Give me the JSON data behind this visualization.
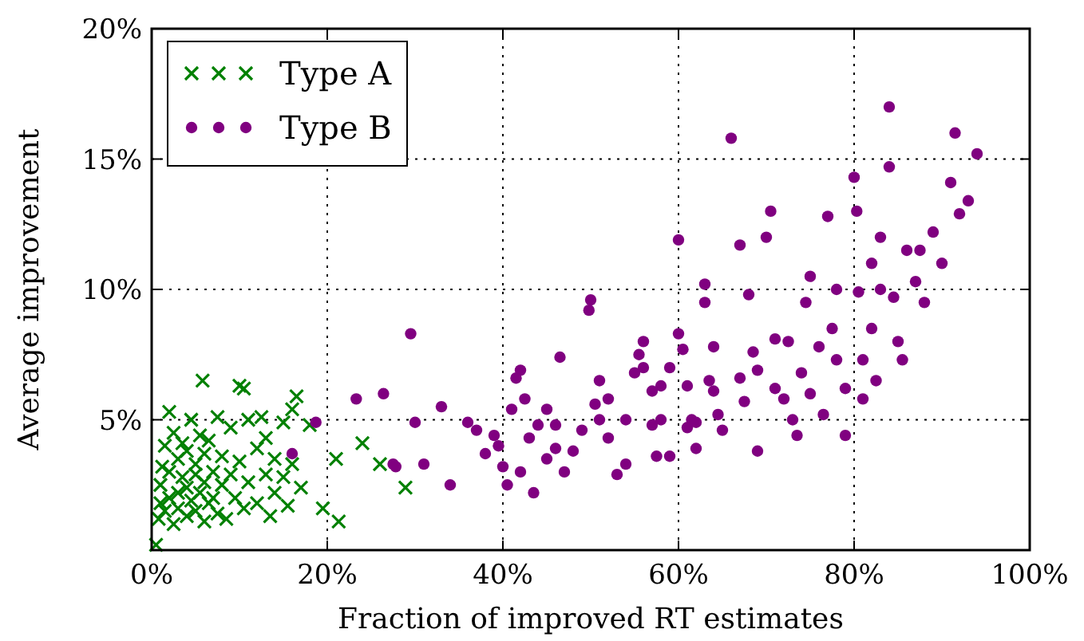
{
  "chart_data": {
    "type": "scatter",
    "xlabel": "Fraction of improved RT estimates",
    "ylabel": "Average improvement",
    "xlim": [
      0,
      100
    ],
    "ylim": [
      0,
      20
    ],
    "xticks": [
      {
        "value": 0,
        "label": "0%"
      },
      {
        "value": 20,
        "label": "20%"
      },
      {
        "value": 40,
        "label": "40%"
      },
      {
        "value": 60,
        "label": "60%"
      },
      {
        "value": 80,
        "label": "80%"
      },
      {
        "value": 100,
        "label": "100%"
      }
    ],
    "yticks": [
      {
        "value": 5,
        "label": "5%"
      },
      {
        "value": 10,
        "label": "10%"
      },
      {
        "value": 15,
        "label": "15%"
      },
      {
        "value": 20,
        "label": "20%"
      }
    ],
    "grid": true,
    "legend": "top left",
    "series": [
      {
        "name": "Type A",
        "color": "#008000",
        "marker": "cross",
        "x": [
          0.5,
          0.8,
          1,
          1,
          1.2,
          1.5,
          1.5,
          2,
          2,
          2,
          2.5,
          2.5,
          3,
          3,
          3,
          3.5,
          3.5,
          4,
          4,
          4,
          4.5,
          4.5,
          5,
          5,
          5,
          5.5,
          5.5,
          5.8,
          6,
          6,
          6,
          6.5,
          6.5,
          7,
          7,
          7.5,
          7.5,
          8,
          8,
          8.5,
          9,
          9,
          9.5,
          10,
          10,
          10.5,
          10.5,
          11,
          11,
          12,
          12,
          12.5,
          13,
          13,
          13.5,
          14,
          14,
          15,
          15,
          15.5,
          16,
          16,
          16.5,
          17,
          21,
          24,
          26,
          28.9,
          19.5,
          21.3,
          18
        ],
        "values": [
          0.2,
          1.2,
          1.8,
          2.5,
          3.2,
          4.0,
          1.5,
          2.0,
          3.0,
          5.3,
          4.5,
          1.0,
          2.2,
          3.5,
          1.6,
          2.8,
          4.1,
          1.3,
          2.4,
          3.8,
          5.0,
          1.9,
          2.9,
          1.5,
          3.3,
          4.4,
          2.2,
          6.5,
          1.1,
          3.7,
          2.6,
          4.2,
          1.8,
          3.0,
          2.0,
          5.1,
          1.4,
          3.6,
          2.5,
          1.2,
          4.7,
          2.9,
          2.0,
          6.3,
          3.4,
          1.6,
          6.2,
          5.0,
          2.6,
          3.9,
          1.8,
          5.1,
          2.9,
          4.3,
          1.3,
          3.5,
          2.2,
          4.9,
          2.8,
          1.7,
          5.4,
          3.3,
          5.9,
          2.4,
          3.5,
          4.1,
          3.3,
          2.4,
          1.6,
          1.1,
          4.8
        ]
      },
      {
        "name": "Type B",
        "color": "#800080",
        "marker": "circle",
        "x": [
          18.7,
          16,
          23.3,
          26.4,
          27.5,
          27.8,
          30,
          29.5,
          33,
          31,
          34,
          36,
          37,
          39,
          38,
          39.5,
          40,
          40.5,
          41,
          41.5,
          42,
          42.5,
          43,
          42,
          43.5,
          44,
          45,
          45,
          46,
          46,
          46.5,
          47,
          48,
          49,
          49.8,
          50,
          50.5,
          51,
          51,
          52,
          52,
          53,
          54,
          54,
          55,
          55.5,
          56,
          56,
          57,
          57,
          57.5,
          58,
          58,
          59,
          59,
          60,
          60,
          60.5,
          61,
          61,
          61.5,
          62,
          62,
          63,
          63,
          63.5,
          64,
          64,
          64.5,
          65,
          66,
          67,
          67,
          67.5,
          68,
          68.5,
          69,
          69,
          70,
          70.5,
          71,
          71,
          72,
          72.5,
          73,
          73.5,
          74,
          74.5,
          75,
          75,
          76,
          76.5,
          77,
          77.5,
          78,
          78,
          79,
          79,
          80,
          80.3,
          80.5,
          81,
          81,
          82,
          82,
          82.5,
          83,
          83,
          84,
          84,
          84.5,
          85,
          85.5,
          86,
          87,
          88,
          89,
          91,
          91.5,
          92,
          93,
          94,
          90,
          87.5
        ],
        "values": [
          4.9,
          3.7,
          5.8,
          6.0,
          3.3,
          3.2,
          4.9,
          8.3,
          5.5,
          3.3,
          2.5,
          4.9,
          4.6,
          4.4,
          3.7,
          4.0,
          3.2,
          2.5,
          5.4,
          6.6,
          6.9,
          5.8,
          4.3,
          3.0,
          2.2,
          4.8,
          5.4,
          3.5,
          4.8,
          3.9,
          7.4,
          3.0,
          3.8,
          4.6,
          9.2,
          9.6,
          5.6,
          6.5,
          5.0,
          5.8,
          4.3,
          2.9,
          3.3,
          5.0,
          6.8,
          7.5,
          8.0,
          7.0,
          6.1,
          4.8,
          3.6,
          6.3,
          5.0,
          7.0,
          3.6,
          11.9,
          8.3,
          7.7,
          6.3,
          4.7,
          5.0,
          4.9,
          3.9,
          10.2,
          9.5,
          6.5,
          7.8,
          6.1,
          5.2,
          4.6,
          15.8,
          11.7,
          6.6,
          5.7,
          9.8,
          7.6,
          6.9,
          3.8,
          12.0,
          13.0,
          8.1,
          6.2,
          5.8,
          8.0,
          5.0,
          4.4,
          6.8,
          9.5,
          10.5,
          6.0,
          7.8,
          5.2,
          12.8,
          8.5,
          10.0,
          7.3,
          6.2,
          4.4,
          14.3,
          13.0,
          9.9,
          7.3,
          5.8,
          11.0,
          8.5,
          6.5,
          12.0,
          10.0,
          17.0,
          14.7,
          9.7,
          8.0,
          7.3,
          11.5,
          10.3,
          9.5,
          12.2,
          14.1,
          16.0,
          12.9,
          13.4,
          15.2,
          11.0,
          11.5
        ]
      }
    ]
  }
}
